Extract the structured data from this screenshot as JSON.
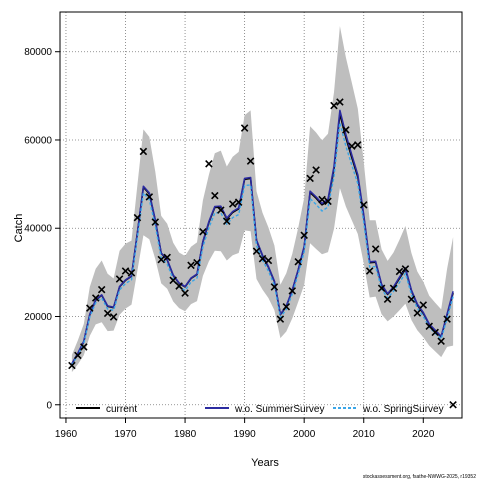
{
  "chart_data": {
    "type": "line",
    "xlabel": "Years",
    "ylabel": "Catch",
    "xlim": [
      1959,
      2026.5
    ],
    "ylim": [
      -3000,
      89000
    ],
    "x_ticks": [
      1960,
      1970,
      1980,
      1990,
      2000,
      2010,
      2020
    ],
    "y_ticks": [
      0,
      20000,
      40000,
      60000,
      80000
    ],
    "grid": true,
    "legend_position": "bottom",
    "credit": "stockassessment.org, fsathe-NWWG-2025, r19352",
    "colors": {
      "band": "#bebebe",
      "current": "#000000",
      "summer": "#2b2ba0",
      "spring": "#3aa6e8",
      "observed": "#000000"
    },
    "observed": {
      "x": [
        1961,
        1962,
        1963,
        1964,
        1965,
        1966,
        1967,
        1968,
        1969,
        1970,
        1971,
        1972,
        1973,
        1974,
        1975,
        1976,
        1977,
        1978,
        1979,
        1980,
        1981,
        1982,
        1983,
        1984,
        1985,
        1986,
        1987,
        1988,
        1989,
        1990,
        1991,
        1992,
        1993,
        1994,
        1995,
        1996,
        1997,
        1998,
        1999,
        2000,
        2001,
        2002,
        2003,
        2004,
        2005,
        2006,
        2007,
        2008,
        2009,
        2010,
        2011,
        2012,
        2013,
        2014,
        2015,
        2016,
        2017,
        2018,
        2019,
        2020,
        2021,
        2022,
        2023,
        2024,
        2025
      ],
      "y": [
        8900,
        11200,
        13100,
        21900,
        24200,
        26100,
        20700,
        19900,
        28500,
        30300,
        29900,
        42400,
        57400,
        47100,
        41400,
        32900,
        33400,
        28200,
        26900,
        25300,
        31600,
        32200,
        39200,
        54600,
        47400,
        44100,
        41600,
        45500,
        45900,
        62700,
        55200,
        34800,
        33100,
        32700,
        26700,
        19400,
        22200,
        25800,
        32400,
        38400,
        51300,
        53200,
        46500,
        46100,
        67800,
        68600,
        62300,
        58600,
        58900,
        45300,
        30300,
        35300,
        26400,
        23900,
        26400,
        30200,
        30800,
        23900,
        20800,
        22600,
        17800,
        16400,
        14400,
        19400,
        0
      ]
    },
    "series": [
      {
        "name": "current",
        "x": [
          1961,
          1962,
          1963,
          1964,
          1965,
          1966,
          1967,
          1968,
          1969,
          1970,
          1971,
          1972,
          1973,
          1974,
          1975,
          1976,
          1977,
          1978,
          1979,
          1980,
          1981,
          1982,
          1983,
          1984,
          1985,
          1986,
          1987,
          1988,
          1989,
          1990,
          1991,
          1992,
          1993,
          1994,
          1995,
          1996,
          1997,
          1998,
          1999,
          2000,
          2001,
          2002,
          2003,
          2004,
          2005,
          2006,
          2007,
          2008,
          2009,
          2010,
          2011,
          2012,
          2013,
          2014,
          2015,
          2016,
          2017,
          2018,
          2019,
          2020,
          2021,
          2022,
          2023,
          2024,
          2025
        ],
        "y": [
          9200,
          11600,
          14300,
          20400,
          23700,
          24800,
          22300,
          22000,
          26700,
          28200,
          29100,
          38900,
          49300,
          47800,
          41700,
          34300,
          32800,
          29300,
          27500,
          26700,
          28600,
          29500,
          36900,
          41300,
          44700,
          44800,
          42100,
          43600,
          44400,
          51100,
          51300,
          37200,
          33800,
          31200,
          27900,
          20400,
          22300,
          25900,
          30500,
          35700,
          48100,
          46800,
          45300,
          46200,
          53300,
          65900,
          60500,
          56000,
          51600,
          42700,
          32200,
          32300,
          27100,
          25000,
          26500,
          28600,
          30700,
          25800,
          22600,
          20700,
          18200,
          16800,
          15400,
          20300,
          25300
        ]
      },
      {
        "name": "w.o. SummerSurvey",
        "x": [
          1961,
          1962,
          1963,
          1964,
          1965,
          1966,
          1967,
          1968,
          1969,
          1970,
          1971,
          1972,
          1973,
          1974,
          1975,
          1976,
          1977,
          1978,
          1979,
          1980,
          1981,
          1982,
          1983,
          1984,
          1985,
          1986,
          1987,
          1988,
          1989,
          1990,
          1991,
          1992,
          1993,
          1994,
          1995,
          1996,
          1997,
          1998,
          1999,
          2000,
          2001,
          2002,
          2003,
          2004,
          2005,
          2006,
          2007,
          2008,
          2009,
          2010,
          2011,
          2012,
          2013,
          2014,
          2015,
          2016,
          2017,
          2018,
          2019,
          2020,
          2021,
          2022,
          2023,
          2024,
          2025
        ],
        "y": [
          9300,
          11700,
          14400,
          20500,
          23800,
          24900,
          22400,
          22100,
          26800,
          28300,
          29200,
          39000,
          49500,
          48000,
          41900,
          34400,
          32900,
          29400,
          27600,
          26800,
          28700,
          29600,
          37000,
          41500,
          44900,
          45000,
          42300,
          43800,
          44600,
          51300,
          51500,
          37300,
          33900,
          31300,
          28000,
          20500,
          22400,
          26000,
          30600,
          35900,
          48400,
          47100,
          45600,
          46600,
          54000,
          66700,
          61200,
          56600,
          52100,
          43100,
          32400,
          32500,
          27300,
          25200,
          26700,
          28900,
          31000,
          26000,
          22800,
          20900,
          18300,
          16900,
          15500,
          20600,
          25700
        ]
      },
      {
        "name": "w.o. SpringSurvey",
        "x": [
          1961,
          1962,
          1963,
          1964,
          1965,
          1966,
          1967,
          1968,
          1969,
          1970,
          1971,
          1972,
          1973,
          1974,
          1975,
          1976,
          1977,
          1978,
          1979,
          1980,
          1981,
          1982,
          1983,
          1984,
          1985,
          1986,
          1987,
          1988,
          1989,
          1990,
          1991,
          1992,
          1993,
          1994,
          1995,
          1996,
          1997,
          1998,
          1999,
          2000,
          2001,
          2002,
          2003,
          2004,
          2005,
          2006,
          2007,
          2008,
          2009,
          2010,
          2011,
          2012,
          2013,
          2014,
          2015,
          2016,
          2017,
          2018,
          2019,
          2020,
          2021,
          2022,
          2023,
          2024,
          2025
        ],
        "y": [
          9000,
          11300,
          13900,
          19900,
          23100,
          24200,
          21700,
          21400,
          26000,
          27500,
          28300,
          37900,
          48000,
          46500,
          40500,
          33300,
          31900,
          28500,
          26700,
          25900,
          27800,
          28700,
          35800,
          40100,
          43500,
          43500,
          40900,
          42400,
          43100,
          49700,
          49800,
          36100,
          32800,
          30300,
          27100,
          19800,
          21600,
          25100,
          29600,
          34700,
          46700,
          45400,
          43900,
          44800,
          51700,
          63900,
          58600,
          54300,
          50100,
          41400,
          31200,
          31300,
          26300,
          24200,
          25700,
          27700,
          29800,
          25000,
          21900,
          20000,
          17600,
          16200,
          14900,
          19600,
          24500
        ]
      }
    ],
    "band": {
      "x": [
        1961,
        1962,
        1963,
        1964,
        1965,
        1966,
        1967,
        1968,
        1969,
        1970,
        1971,
        1972,
        1973,
        1974,
        1975,
        1976,
        1977,
        1978,
        1979,
        1980,
        1981,
        1982,
        1983,
        1984,
        1985,
        1986,
        1987,
        1988,
        1989,
        1990,
        1991,
        1992,
        1993,
        1994,
        1995,
        1996,
        1997,
        1998,
        1999,
        2000,
        2001,
        2002,
        2003,
        2004,
        2005,
        2006,
        2007,
        2008,
        2009,
        2010,
        2011,
        2012,
        2013,
        2014,
        2015,
        2016,
        2017,
        2018,
        2019,
        2020,
        2021,
        2022,
        2023,
        2024,
        2025
      ],
      "lower": [
        7400,
        9200,
        11200,
        15600,
        18200,
        18700,
        16700,
        16800,
        20400,
        21800,
        22700,
        30400,
        38400,
        37500,
        33000,
        27500,
        26300,
        23400,
        21900,
        21200,
        22800,
        23500,
        29200,
        32500,
        34900,
        34800,
        32700,
        33900,
        34400,
        39500,
        39300,
        28500,
        26100,
        24200,
        21400,
        15100,
        16600,
        19600,
        23300,
        27200,
        36600,
        35300,
        34100,
        34600,
        39900,
        49100,
        44900,
        41800,
        38700,
        32100,
        24300,
        24500,
        20500,
        18900,
        20000,
        21400,
        22900,
        19200,
        16900,
        15300,
        13400,
        12100,
        10800,
        13100,
        13400
      ],
      "upper": [
        11300,
        14600,
        18300,
        26700,
        30800,
        32700,
        29700,
        28600,
        34900,
        36500,
        37200,
        49800,
        62400,
        60700,
        52800,
        42800,
        41000,
        36700,
        34500,
        33700,
        35800,
        36800,
        46300,
        52100,
        57000,
        57600,
        54000,
        56200,
        57300,
        65600,
        66700,
        48400,
        43500,
        40200,
        36100,
        27200,
        29800,
        34200,
        40100,
        46900,
        63100,
        61700,
        59900,
        61400,
        70800,
        85800,
        78700,
        73000,
        67100,
        55100,
        41800,
        41800,
        35200,
        32600,
        34500,
        37400,
        40500,
        34400,
        30200,
        27900,
        24700,
        23100,
        21600,
        30800,
        38000
      ]
    }
  },
  "legend": {
    "current": "current",
    "summer": "w.o. SummerSurvey",
    "spring": "w.o. SpringSurvey"
  }
}
